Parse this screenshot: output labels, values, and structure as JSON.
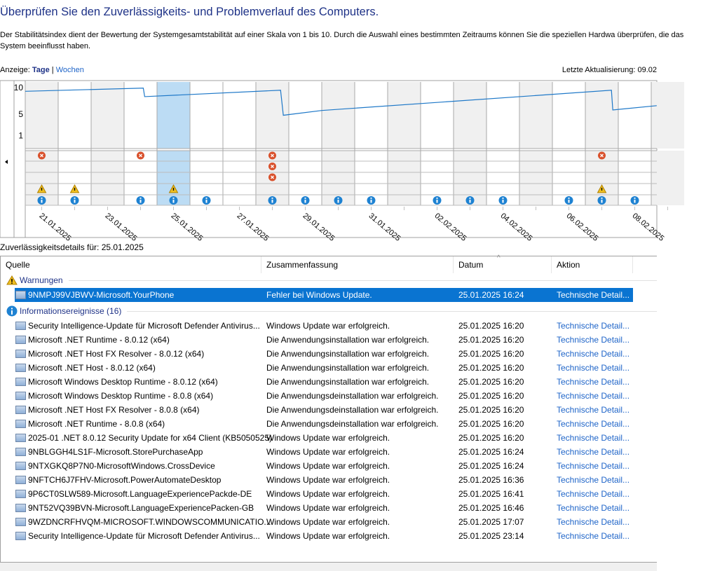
{
  "header": {
    "title": "Überprüfen Sie den Zuverlässigkeits- und Problemverlauf des Computers.",
    "description": "Der Stabilitätsindex dient der Bewertung der Systemgesamtstabilität auf einer Skala von 1 bis 10. Durch die Auswahl eines bestimmten Zeitraums können Sie die speziellen Hardwa überprüfen, die das System beeinflusst haben.",
    "view_label": "Anzeige:",
    "view_days": "Tage",
    "view_sep": "|",
    "view_weeks": "Wochen",
    "last_update": "Letzte Aktualisierung: 09.02"
  },
  "chart_data": {
    "type": "line",
    "y_ticks": [
      "10",
      "5",
      "1"
    ],
    "ylim": [
      1,
      10
    ],
    "dates": [
      "21.01.2025",
      "22.01.2025",
      "23.01.2025",
      "24.01.2025",
      "25.01.2025",
      "26.01.2025",
      "27.01.2025",
      "28.01.2025",
      "29.01.2025",
      "30.01.2025",
      "31.01.2025",
      "01.02.2025",
      "02.02.2025",
      "03.02.2025",
      "04.02.2025",
      "05.02.2025",
      "06.02.2025",
      "07.02.2025",
      "08.02.2025",
      "09.02.2025"
    ],
    "x_tick_labels": [
      "21.01.2025",
      "23.01.2025",
      "25.01.2025",
      "27.01.2025",
      "29.01.2025",
      "31.01.2025",
      "02.02.2025",
      "04.02.2025",
      "06.02.2025",
      "08.02.2025"
    ],
    "shaded_days": [
      "21.01.2025",
      "23.01.2025",
      "28.01.2025",
      "30.01.2025",
      "01.02.2025",
      "03.02.2025",
      "05.02.2025",
      "07.02.2025",
      "09.02.2025"
    ],
    "selected_day": "25.01.2025",
    "stability_index": [
      [
        "2025-01-21T00:00",
        9.3
      ],
      [
        "2025-01-24T14:00",
        9.9
      ],
      [
        "2025-01-24T15:00",
        8.3
      ],
      [
        "2025-01-28T18:00",
        9.5
      ],
      [
        "2025-01-28T20:00",
        4.8
      ],
      [
        "2025-01-30T00:00",
        5.7
      ],
      [
        "2025-02-07T19:00",
        9.5
      ],
      [
        "2025-02-07T20:00",
        5.8
      ],
      [
        "2025-02-09T04:00",
        6.6
      ]
    ],
    "events": {
      "errors": {
        "21.01.2025": 1,
        "24.01.2025": 1,
        "28.01.2025": 3,
        "07.02.2025": 1
      },
      "warnings": [
        "21.01.2025",
        "22.01.2025",
        "25.01.2025",
        "07.02.2025"
      ],
      "information": [
        "21.01.2025",
        "22.01.2025",
        "24.01.2025",
        "25.01.2025",
        "26.01.2025",
        "28.01.2025",
        "29.01.2025",
        "30.01.2025",
        "31.01.2025",
        "02.02.2025",
        "03.02.2025",
        "04.02.2025",
        "06.02.2025",
        "07.02.2025",
        "08.02.2025"
      ]
    },
    "colors": {
      "line": "#1e78c8",
      "selected": "#bcdcf4",
      "shade": "#f0f0f0",
      "error": "#d9512c",
      "warning": "#f0c020",
      "info": "#1e82d2"
    }
  },
  "details": {
    "title": "Zuverlässigkeitsdetails für: 25.01.2025",
    "columns": [
      "Quelle",
      "Zusammenfassung",
      "Datum",
      "Aktion"
    ],
    "warnings_group": "Warnungen",
    "warnings": [
      {
        "source": "9NMPJ99VJBWV-Microsoft.YourPhone",
        "summary": "Fehler bei Windows Update.",
        "date": "25.01.2025 16:24",
        "action": "Technische Detail..."
      }
    ],
    "info_group": "Informationsereignisse (16)",
    "info": [
      {
        "source": "Security Intelligence-Update für Microsoft Defender Antivirus...",
        "summary": "Windows Update war erfolgreich.",
        "date": "25.01.2025 16:20",
        "action": "Technische Detail..."
      },
      {
        "source": "Microsoft .NET Runtime - 8.0.12 (x64)",
        "summary": "Die Anwendungsinstallation war erfolgreich.",
        "date": "25.01.2025 16:20",
        "action": "Technische Detail..."
      },
      {
        "source": "Microsoft .NET Host FX Resolver - 8.0.12 (x64)",
        "summary": "Die Anwendungsinstallation war erfolgreich.",
        "date": "25.01.2025 16:20",
        "action": "Technische Detail..."
      },
      {
        "source": "Microsoft .NET Host - 8.0.12 (x64)",
        "summary": "Die Anwendungsinstallation war erfolgreich.",
        "date": "25.01.2025 16:20",
        "action": "Technische Detail..."
      },
      {
        "source": "Microsoft Windows Desktop Runtime - 8.0.12 (x64)",
        "summary": "Die Anwendungsinstallation war erfolgreich.",
        "date": "25.01.2025 16:20",
        "action": "Technische Detail..."
      },
      {
        "source": "Microsoft Windows Desktop Runtime - 8.0.8 (x64)",
        "summary": "Die Anwendungsdeinstallation war erfolgreich.",
        "date": "25.01.2025 16:20",
        "action": "Technische Detail..."
      },
      {
        "source": "Microsoft .NET Host FX Resolver - 8.0.8 (x64)",
        "summary": "Die Anwendungsdeinstallation war erfolgreich.",
        "date": "25.01.2025 16:20",
        "action": "Technische Detail..."
      },
      {
        "source": "Microsoft .NET Runtime - 8.0.8 (x64)",
        "summary": "Die Anwendungsdeinstallation war erfolgreich.",
        "date": "25.01.2025 16:20",
        "action": "Technische Detail..."
      },
      {
        "source": "2025-01 .NET 8.0.12 Security Update for x64 Client (KB5050525)",
        "summary": "Windows Update war erfolgreich.",
        "date": "25.01.2025 16:20",
        "action": "Technische Detail..."
      },
      {
        "source": "9NBLGGH4LS1F-Microsoft.StorePurchaseApp",
        "summary": "Windows Update war erfolgreich.",
        "date": "25.01.2025 16:24",
        "action": "Technische Detail..."
      },
      {
        "source": "9NTXGKQ8P7N0-MicrosoftWindows.CrossDevice",
        "summary": "Windows Update war erfolgreich.",
        "date": "25.01.2025 16:24",
        "action": "Technische Detail..."
      },
      {
        "source": "9NFTCH6J7FHV-Microsoft.PowerAutomateDesktop",
        "summary": "Windows Update war erfolgreich.",
        "date": "25.01.2025 16:36",
        "action": "Technische Detail..."
      },
      {
        "source": "9P6CT0SLW589-Microsoft.LanguageExperiencePackde-DE",
        "summary": "Windows Update war erfolgreich.",
        "date": "25.01.2025 16:41",
        "action": "Technische Detail..."
      },
      {
        "source": "9NT52VQ39BVN-Microsoft.LanguageExperiencePacken-GB",
        "summary": "Windows Update war erfolgreich.",
        "date": "25.01.2025 16:46",
        "action": "Technische Detail..."
      },
      {
        "source": "9WZDNCRFHVQM-MICROSOFT.WINDOWSCOMMUNICATIO...",
        "summary": "Windows Update war erfolgreich.",
        "date": "25.01.2025 17:07",
        "action": "Technische Detail..."
      },
      {
        "source": "Security Intelligence-Update für Microsoft Defender Antivirus...",
        "summary": "Windows Update war erfolgreich.",
        "date": "25.01.2025 23:14",
        "action": "Technische Detail..."
      }
    ]
  }
}
